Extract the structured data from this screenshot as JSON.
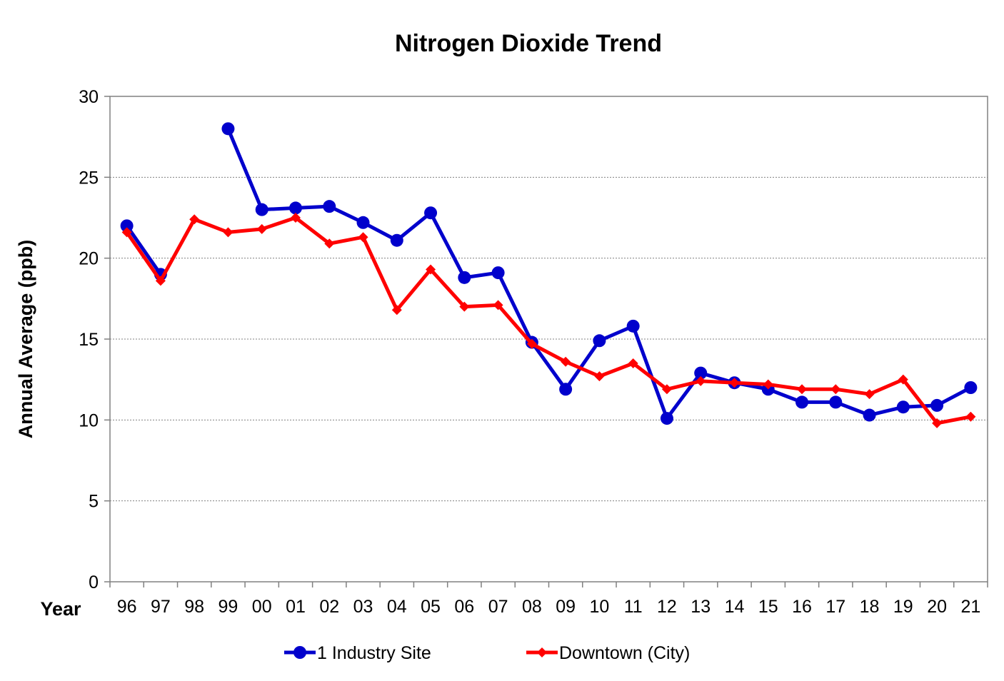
{
  "chart_data": {
    "type": "line",
    "title": "Nitrogen Dioxide Trend",
    "xlabel": "Year",
    "ylabel": "Annual Average (ppb)",
    "categories": [
      "96",
      "97",
      "98",
      "99",
      "00",
      "01",
      "02",
      "03",
      "04",
      "05",
      "06",
      "07",
      "08",
      "09",
      "10",
      "11",
      "12",
      "13",
      "14",
      "15",
      "16",
      "17",
      "18",
      "19",
      "20",
      "21"
    ],
    "ylim": [
      0,
      30
    ],
    "yticks": [
      "0",
      "5",
      "10",
      "15",
      "20",
      "25",
      "30"
    ],
    "grid": "horizontal",
    "legend": "bottom",
    "series": [
      {
        "name": "1 Industry Site",
        "color": "#0000CC",
        "marker": "circle",
        "values": [
          22.0,
          19.0,
          null,
          28.0,
          23.0,
          23.1,
          23.2,
          22.2,
          21.1,
          22.8,
          18.8,
          19.1,
          14.8,
          11.9,
          14.9,
          15.8,
          10.1,
          12.9,
          12.3,
          11.9,
          11.1,
          11.1,
          10.3,
          10.8,
          10.9,
          12.0
        ]
      },
      {
        "name": "Downtown (City)",
        "color": "#FF0000",
        "marker": "diamond",
        "values": [
          21.6,
          18.6,
          22.4,
          21.6,
          21.8,
          22.5,
          20.9,
          21.3,
          16.8,
          19.3,
          17.0,
          17.1,
          14.7,
          13.6,
          12.7,
          13.5,
          11.9,
          12.4,
          12.3,
          12.2,
          11.9,
          11.9,
          11.6,
          12.5,
          9.8,
          10.2
        ]
      }
    ]
  }
}
